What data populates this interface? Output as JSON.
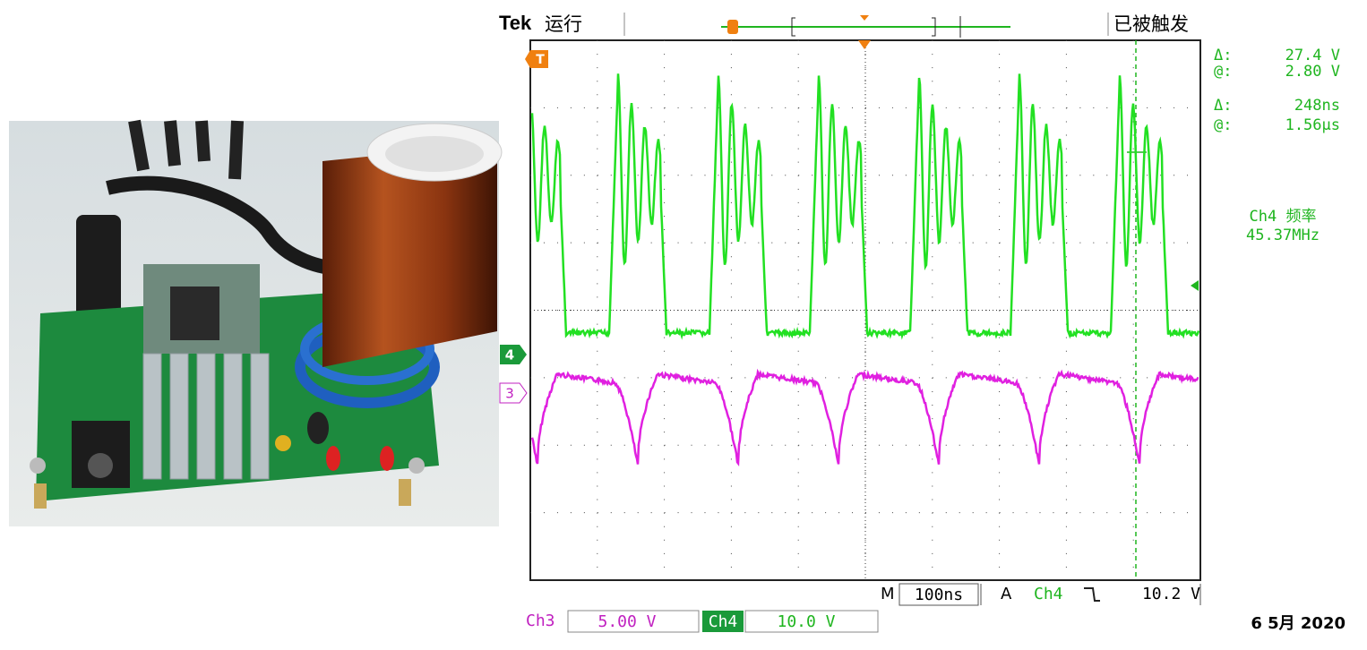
{
  "header": {
    "brand": "Tek",
    "status": "运行",
    "trigger_status": "已被触发"
  },
  "markers": {
    "trigger": "T",
    "ch4": "4",
    "ch3": "3"
  },
  "cursors": [
    {
      "delta_label": "Δ:",
      "delta": "27.4 V",
      "at_label": "@:",
      "at": "2.80 V"
    },
    {
      "delta_label": "Δ:",
      "delta": "248ns",
      "at_label": "@:",
      "at": "1.56µs"
    }
  ],
  "measurement": {
    "label": "Ch4 频率",
    "value": "45.37MHz"
  },
  "timebase": {
    "label": "M",
    "value": "100ns"
  },
  "trigger": {
    "label": "A",
    "channel": "Ch4",
    "level": "10.2 V"
  },
  "channels": [
    {
      "name": "Ch3",
      "scale": "5.00 V"
    },
    {
      "name": "Ch4",
      "scale": "10.0 V"
    }
  ],
  "date": "6 5月 2020"
}
